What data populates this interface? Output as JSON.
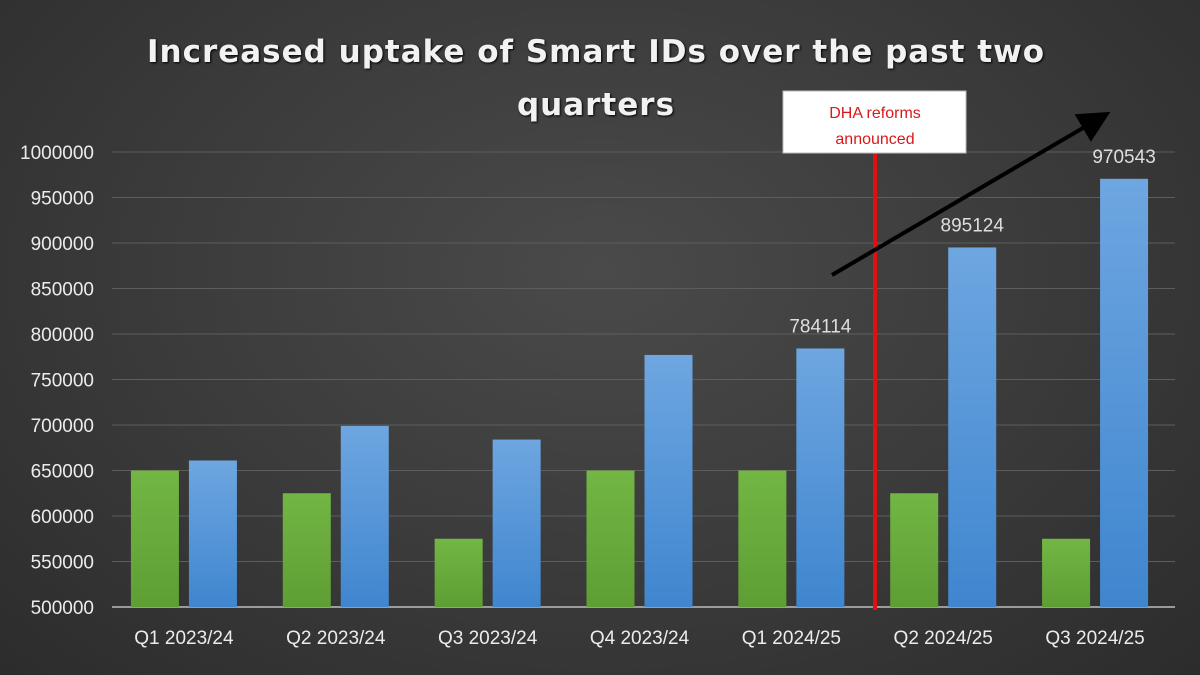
{
  "chart_data": {
    "type": "bar",
    "title_lines": [
      "Increased uptake of Smart IDs over the past two",
      "quarters"
    ],
    "categories": [
      "Q1 2023/24",
      "Q2 2023/24",
      "Q3 2023/24",
      "Q4 2023/24",
      "Q1 2024/25",
      "Q2 2024/25",
      "Q3 2024/25"
    ],
    "series": [
      {
        "color": "#6aad3d",
        "values": [
          650000,
          625000,
          575000,
          650000,
          650000,
          625000,
          575000
        ],
        "data_labels": [
          null,
          null,
          null,
          null,
          null,
          null,
          null
        ]
      },
      {
        "color": "#4f93d6",
        "values": [
          661000,
          699000,
          684000,
          777000,
          784114,
          895124,
          970543
        ],
        "data_labels": [
          null,
          null,
          null,
          null,
          "784114",
          "895124",
          "970543"
        ]
      }
    ],
    "ylim": [
      500000,
      1000000
    ],
    "yticks": [
      "500000",
      "550000",
      "600000",
      "650000",
      "700000",
      "750000",
      "800000",
      "850000",
      "900000",
      "950000",
      "1000000"
    ],
    "grid": true,
    "legend": "none",
    "annotation": {
      "lines": [
        "DHA reforms",
        "announced"
      ],
      "marker_color": "#e01010",
      "position": "between Q1 2024/25 and Q2 2024/25"
    },
    "trend_arrow": {
      "color": "#000000",
      "direction": "up-right"
    }
  }
}
